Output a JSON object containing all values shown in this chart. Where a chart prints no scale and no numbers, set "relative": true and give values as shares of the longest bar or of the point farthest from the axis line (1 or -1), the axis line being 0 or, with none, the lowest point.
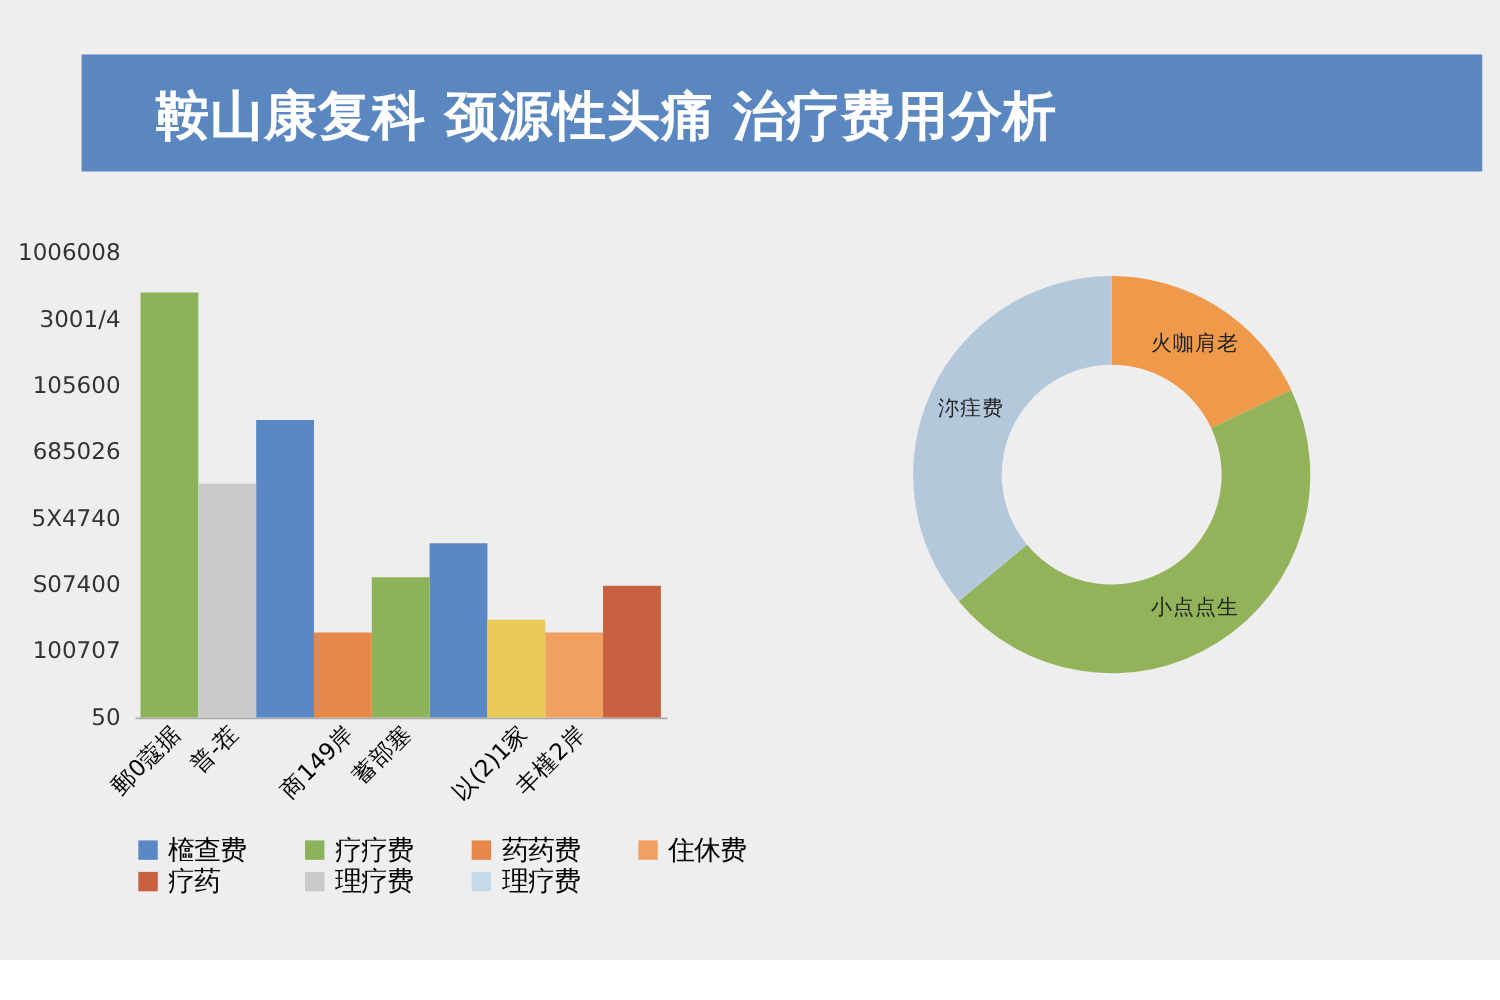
{
  "chart_data": [
    {
      "type": "bar",
      "title": "鞍山康复科  颈源性头痛 治疗费用分析",
      "relative": true,
      "legend": "bottom",
      "categories": [
        "郵0蔻据",
        "普-茬",
        null,
        "商149岸",
        "蓄部塞",
        null,
        "以(2)1家",
        "丰槿2岸",
        null
      ],
      "annotations": [
        "50",
        "100707",
        "S07400",
        "5X4740",
        "685026",
        "105600",
        "3001/4",
        "1006008"
      ],
      "series": [
        {
          "name": "檶查费",
          "color": "#5a88c5",
          "values": [
            null,
            null,
            0.7,
            null,
            null,
            0.41,
            null,
            null,
            null
          ]
        },
        {
          "name": "疗疗费",
          "color": "#8db35a",
          "values": [
            1,
            null,
            null,
            null,
            0.33,
            null,
            null,
            null,
            null
          ]
        },
        {
          "name": "药药费",
          "color": "#e8874a",
          "values": [
            null,
            null,
            null,
            0.2,
            null,
            null,
            null,
            null,
            null
          ]
        },
        {
          "name": "住休费",
          "color": "#f0a060",
          "values": [
            null,
            null,
            null,
            null,
            null,
            null,
            null,
            0.2,
            null
          ]
        },
        {
          "name": "疗药",
          "color": "#c8603f",
          "values": [
            null,
            null,
            null,
            null,
            null,
            null,
            null,
            null,
            0.31
          ]
        },
        {
          "name": "理疗费",
          "color": "#c8cacb",
          "values": [
            null,
            0.55,
            null,
            null,
            null,
            null,
            null,
            null,
            null
          ]
        },
        {
          "name": "理疗费",
          "color": "#c5d9ea",
          "values": [
            null,
            null,
            null,
            null,
            null,
            null,
            null,
            null,
            null
          ]
        },
        {
          "color": "#e8c95a",
          "values": [
            null,
            null,
            null,
            null,
            null,
            null,
            0.23,
            null,
            null
          ]
        }
      ]
    },
    {
      "type": "donut",
      "categories": [
        "火咖肩老",
        "小点点生",
        "沵疰费"
      ],
      "values": [
        18,
        46,
        36
      ],
      "colors": [
        "#ef9a4a",
        "#93b35a",
        "#b4c8dc"
      ]
    }
  ]
}
